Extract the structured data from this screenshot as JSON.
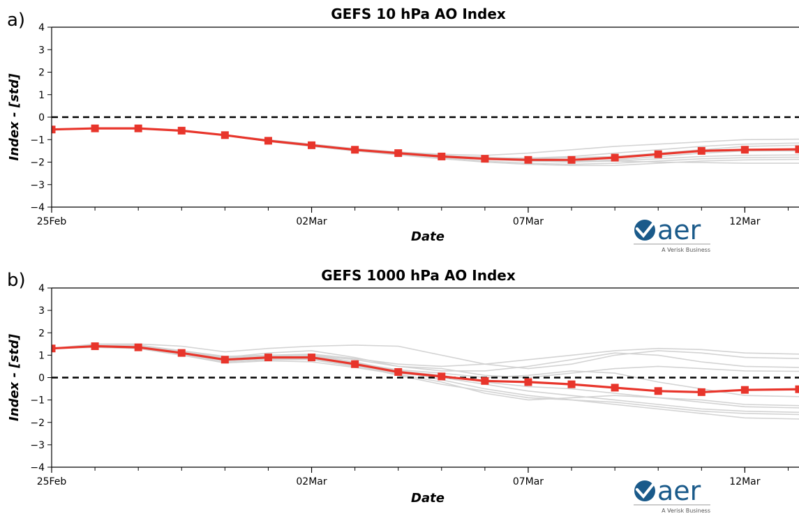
{
  "colors": {
    "forecast": "#e8352b",
    "ensemble": "#d3d3d3",
    "zero_line": "#000000",
    "logo_blue": "#1a5a8a"
  },
  "logo": {
    "name": "aer",
    "tagline": "A Verisk Business",
    "icon": "aer-checkmark-logo-icon"
  },
  "chart_data": [
    {
      "panel": "a)",
      "type": "line",
      "title": "GEFS 10 hPa AO Index",
      "xlabel": "Date",
      "ylabel": "Index - [std]",
      "ylim": [
        -4,
        4
      ],
      "yticks": [
        "4",
        "3",
        "2",
        "1",
        "0",
        "−1",
        "−2",
        "−3",
        "−4"
      ],
      "xlim": [
        "2024-02-25",
        "2024-03-13 06:00"
      ],
      "xtick_labels": [
        {
          "date": "2024-02-25",
          "label": "25Feb"
        },
        {
          "date": "2024-03-02",
          "label": "02Mar"
        },
        {
          "date": "2024-03-07",
          "label": "07Mar"
        },
        {
          "date": "2024-03-12",
          "label": "12Mar"
        }
      ],
      "zero_line": 0,
      "series": [
        {
          "role": "ensemble_mean",
          "x": [
            "2024-02-25",
            "2024-02-26",
            "2024-02-27",
            "2024-02-28",
            "2024-02-29",
            "2024-03-01",
            "2024-03-02",
            "2024-03-03",
            "2024-03-04",
            "2024-03-05",
            "2024-03-06",
            "2024-03-07",
            "2024-03-08",
            "2024-03-09",
            "2024-03-10",
            "2024-03-11",
            "2024-03-12",
            "2024-03-13 06:00"
          ],
          "values": [
            -0.55,
            -0.5,
            -0.5,
            -0.6,
            -0.8,
            -1.05,
            -1.25,
            -1.45,
            -1.6,
            -1.75,
            -1.85,
            -1.9,
            -1.9,
            -1.8,
            -1.65,
            -1.5,
            -1.45,
            -1.43
          ]
        }
      ],
      "members": [
        [
          -0.55,
          -0.5,
          -0.5,
          -0.6,
          -0.8,
          -1.0,
          -1.2,
          -1.4,
          -1.55,
          -1.65,
          -1.7,
          -1.6,
          -1.45,
          -1.3,
          -1.2,
          -1.1,
          -1.0,
          -0.98
        ],
        [
          -0.55,
          -0.5,
          -0.5,
          -0.6,
          -0.8,
          -1.05,
          -1.25,
          -1.45,
          -1.6,
          -1.75,
          -1.85,
          -1.95,
          -2.0,
          -1.95,
          -1.85,
          -1.75,
          -1.7,
          -1.68
        ],
        [
          -0.55,
          -0.5,
          -0.5,
          -0.6,
          -0.8,
          -1.05,
          -1.3,
          -1.5,
          -1.65,
          -1.8,
          -1.95,
          -2.05,
          -2.1,
          -2.05,
          -1.95,
          -1.85,
          -1.8,
          -1.78
        ],
        [
          -0.55,
          -0.5,
          -0.5,
          -0.6,
          -0.78,
          -1.02,
          -1.22,
          -1.42,
          -1.55,
          -1.7,
          -1.8,
          -1.85,
          -1.8,
          -1.75,
          -1.6,
          -1.45,
          -1.3,
          -1.25
        ],
        [
          -0.55,
          -0.5,
          -0.5,
          -0.6,
          -0.82,
          -1.08,
          -1.3,
          -1.5,
          -1.68,
          -1.85,
          -2.0,
          -2.1,
          -2.15,
          -2.15,
          -2.05,
          -1.95,
          -1.9,
          -1.88
        ],
        [
          -0.55,
          -0.5,
          -0.5,
          -0.6,
          -0.8,
          -1.05,
          -1.28,
          -1.46,
          -1.6,
          -1.72,
          -1.8,
          -1.82,
          -1.75,
          -1.6,
          -1.45,
          -1.3,
          -1.2,
          -1.15
        ],
        [
          -0.55,
          -0.5,
          -0.5,
          -0.6,
          -0.8,
          -1.04,
          -1.26,
          -1.44,
          -1.58,
          -1.7,
          -1.78,
          -1.85,
          -1.9,
          -1.95,
          -2.0,
          -2.02,
          -2.05,
          -2.05
        ],
        [
          -0.55,
          -0.5,
          -0.5,
          -0.6,
          -0.8,
          -1.06,
          -1.27,
          -1.47,
          -1.62,
          -1.78,
          -1.88,
          -1.95,
          -1.98,
          -1.9,
          -1.75,
          -1.6,
          -1.5,
          -1.5
        ]
      ]
    },
    {
      "panel": "b)",
      "type": "line",
      "title": "GEFS 1000 hPa AO Index",
      "xlabel": "Date",
      "ylabel": "Index - [std]",
      "ylim": [
        -4,
        4
      ],
      "yticks": [
        "4",
        "3",
        "2",
        "1",
        "0",
        "−1",
        "−2",
        "−3",
        "−4"
      ],
      "xlim": [
        "2024-02-25",
        "2024-03-13 06:00"
      ],
      "xtick_labels": [
        {
          "date": "2024-02-25",
          "label": "25Feb"
        },
        {
          "date": "2024-03-02",
          "label": "02Mar"
        },
        {
          "date": "2024-03-07",
          "label": "07Mar"
        },
        {
          "date": "2024-03-12",
          "label": "12Mar"
        }
      ],
      "zero_line": 0,
      "series": [
        {
          "role": "ensemble_mean",
          "x": [
            "2024-02-25",
            "2024-02-26",
            "2024-02-27",
            "2024-02-28",
            "2024-02-29",
            "2024-03-01",
            "2024-03-02",
            "2024-03-03",
            "2024-03-04",
            "2024-03-05",
            "2024-03-06",
            "2024-03-07",
            "2024-03-08",
            "2024-03-09",
            "2024-03-10",
            "2024-03-11",
            "2024-03-12",
            "2024-03-13 06:00"
          ],
          "values": [
            1.3,
            1.4,
            1.35,
            1.1,
            0.8,
            0.9,
            0.9,
            0.6,
            0.25,
            0.05,
            -0.15,
            -0.2,
            -0.3,
            -0.45,
            -0.6,
            -0.65,
            -0.55,
            -0.52
          ]
        }
      ],
      "members": [
        [
          1.3,
          1.5,
          1.5,
          1.4,
          1.15,
          1.3,
          1.4,
          1.45,
          1.4,
          1.0,
          0.6,
          0.4,
          0.6,
          1.0,
          1.2,
          1.1,
          0.9,
          0.85
        ],
        [
          1.3,
          1.4,
          1.35,
          1.1,
          0.9,
          1.1,
          1.2,
          0.9,
          0.5,
          0.3,
          0.3,
          0.5,
          0.8,
          1.1,
          1.0,
          0.7,
          0.5,
          0.45
        ],
        [
          1.3,
          1.35,
          1.3,
          1.0,
          0.7,
          0.8,
          0.8,
          0.5,
          0.2,
          0.0,
          -0.3,
          -0.6,
          -0.8,
          -1.0,
          -1.2,
          -1.4,
          -1.5,
          -1.55
        ],
        [
          1.3,
          1.45,
          1.4,
          1.2,
          0.85,
          0.95,
          1.0,
          0.7,
          0.3,
          -0.1,
          -0.5,
          -0.8,
          -1.0,
          -1.2,
          -1.4,
          -1.6,
          -1.8,
          -1.85
        ],
        [
          1.3,
          1.4,
          1.35,
          1.05,
          0.75,
          0.85,
          0.85,
          0.55,
          0.1,
          -0.3,
          -0.6,
          -0.9,
          -1.0,
          -1.1,
          -1.3,
          -1.5,
          -1.6,
          -1.65
        ],
        [
          1.3,
          1.45,
          1.45,
          1.2,
          0.95,
          1.0,
          1.0,
          0.8,
          0.5,
          0.4,
          0.1,
          0.0,
          0.2,
          0.4,
          0.5,
          0.4,
          0.3,
          0.28
        ],
        [
          1.3,
          1.35,
          1.3,
          1.0,
          0.65,
          0.75,
          0.7,
          0.45,
          0.15,
          -0.2,
          -0.7,
          -1.0,
          -0.9,
          -0.8,
          -0.9,
          -1.0,
          -1.2,
          -1.25
        ],
        [
          1.3,
          1.4,
          1.4,
          1.15,
          0.8,
          0.9,
          0.95,
          0.65,
          0.35,
          0.2,
          0.0,
          0.1,
          0.3,
          0.2,
          -0.2,
          -0.5,
          -0.8,
          -0.85
        ],
        [
          1.3,
          1.4,
          1.35,
          1.1,
          0.8,
          0.9,
          0.85,
          0.6,
          0.3,
          0.1,
          -0.2,
          -0.4,
          -0.5,
          -0.7,
          -0.9,
          -1.1,
          -1.3,
          -1.35
        ],
        [
          1.3,
          1.45,
          1.4,
          1.2,
          0.9,
          1.0,
          1.05,
          0.85,
          0.6,
          0.5,
          0.6,
          0.8,
          1.0,
          1.2,
          1.3,
          1.25,
          1.1,
          1.05
        ]
      ]
    }
  ]
}
